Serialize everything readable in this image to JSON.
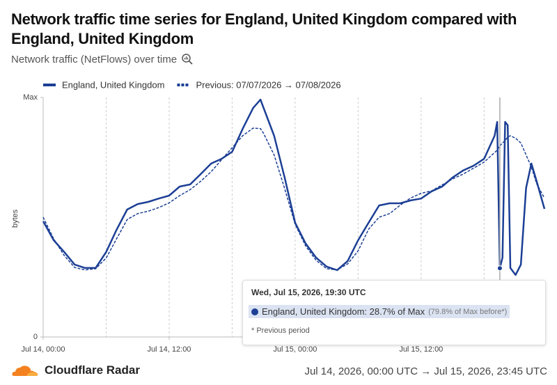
{
  "chart_data": {
    "type": "line",
    "title": "Network traffic time series for England, United Kingdom compared with England, United Kingdom",
    "subtitle": "Network traffic (NetFlows) over time",
    "y_label": "bytes",
    "x": [
      0,
      1,
      2,
      3,
      4,
      5,
      6,
      7,
      8,
      9,
      10,
      11,
      12,
      13,
      14,
      15,
      16,
      17,
      18,
      19,
      20,
      20.7,
      21,
      22,
      23,
      24,
      25,
      26,
      27,
      28,
      29,
      30,
      31,
      32,
      33,
      34,
      35,
      36,
      37,
      38,
      39,
      40,
      41,
      42,
      43,
      43.25,
      43.5,
      43.75,
      44,
      44.25,
      44.5,
      45,
      45.5,
      46,
      46.5,
      47,
      47.75
    ],
    "series": [
      {
        "name": "England, United Kingdom",
        "color": "#1c3f95",
        "line_style": "solid",
        "values": [
          48.3,
          40.4,
          35.5,
          30.2,
          28.8,
          28.8,
          35.5,
          44.8,
          53.2,
          55.5,
          56.4,
          57.8,
          59.0,
          62.8,
          63.7,
          68.0,
          72.4,
          74.4,
          77.3,
          86.9,
          95.6,
          99.1,
          95.6,
          84.0,
          66.6,
          47.7,
          39.0,
          33.1,
          29.4,
          27.9,
          31.7,
          40.4,
          47.7,
          54.9,
          55.8,
          55.8,
          57.0,
          57.8,
          60.8,
          62.8,
          66.6,
          69.5,
          71.5,
          74.4,
          84.0,
          89.8,
          28.7,
          33.1,
          89.8,
          88.4,
          28.8,
          25.9,
          30.2,
          62.2,
          72.4,
          65.1,
          53.5
        ]
      },
      {
        "name": "Previous: 07/07/2026 → 07/08/2026",
        "color": "#1c3f95",
        "line_style": "dashed",
        "values": [
          50.0,
          41.0,
          34.0,
          29.0,
          28.0,
          28.5,
          33.0,
          41.0,
          49.0,
          51.5,
          52.5,
          54.0,
          56.0,
          59.0,
          61.5,
          65.0,
          69.0,
          74.0,
          79.0,
          84.0,
          87.2,
          87.0,
          85.0,
          76.0,
          62.0,
          47.0,
          38.0,
          32.0,
          28.5,
          28.0,
          30.5,
          36.0,
          45.0,
          50.0,
          51.5,
          55.0,
          58.0,
          60.0,
          61.0,
          63.5,
          66.0,
          68.0,
          70.5,
          73.0,
          77.0,
          78.0,
          79.8,
          81.0,
          82.0,
          83.5,
          84.0,
          83.0,
          81.0,
          76.0,
          71.0,
          64.0,
          58.0
        ]
      }
    ],
    "xlim": [
      0,
      47.75
    ],
    "xticks": [
      {
        "value": 0,
        "label": "Jul 14, 00:00"
      },
      {
        "value": 12,
        "label": "Jul 14, 12:00"
      },
      {
        "value": 24,
        "label": "Jul 15, 00:00"
      },
      {
        "value": 36,
        "label": "Jul 15, 12:00"
      }
    ],
    "minor_xticks": [
      6,
      18,
      30,
      42
    ],
    "ylim": [
      0,
      100
    ],
    "yticks": [
      0,
      {
        "value": 100,
        "label": "Max"
      }
    ],
    "grid": true,
    "legend": "top",
    "tooltip": {
      "x": 43.5,
      "time": "Wed, Jul 15, 2026, 19:30 UTC",
      "text": "England, United Kingdom: 28.7% of Max",
      "before": "(79.8% of Max before*)",
      "note": "* Previous period"
    },
    "brand": "Cloudflare Radar",
    "date_range": "Jul 14, 2026, 00:00 UTC → Jul 15, 2026, 23:45 UTC"
  }
}
